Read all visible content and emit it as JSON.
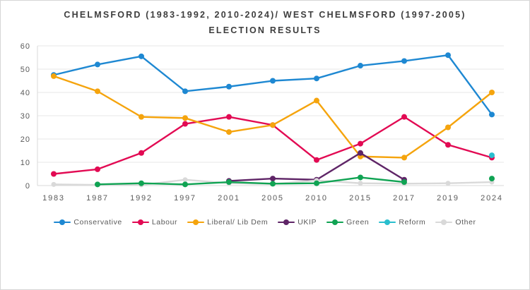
{
  "page": {
    "background_color": "#ffffff",
    "frame_border_color": "#d6d6d6"
  },
  "chart_data": {
    "type": "line",
    "title": "CHELMSFORD (1983-1992, 2010-2024)/ WEST CHELMSFORD (1997-2005) ELECTION RESULTS",
    "categories": [
      "1983",
      "1987",
      "1992",
      "1997",
      "2001",
      "2005",
      "2010",
      "2015",
      "2017",
      "2019",
      "2024"
    ],
    "y_ticks": [
      0,
      10,
      20,
      30,
      40,
      50,
      60
    ],
    "ylim": [
      0,
      60
    ],
    "xlabel": "",
    "ylabel": "",
    "grid": "horizontal",
    "legend_position": "bottom",
    "axis_label_color": "#595959",
    "gridline_color": "#e7e7e7",
    "axis_line_color": "#d9d9d9",
    "series": [
      {
        "name": "Conservative",
        "color": "#1E88D2",
        "values": [
          47.5,
          52,
          55.5,
          40.5,
          42.5,
          45,
          46,
          51.5,
          53.5,
          56,
          30.5
        ]
      },
      {
        "name": "Labour",
        "color": "#E20A53",
        "values": [
          5,
          7,
          14,
          26.5,
          29.5,
          26,
          11,
          18,
          29.5,
          17.5,
          12
        ]
      },
      {
        "name": "Liberal/ Lib Dem",
        "color": "#F5A40D",
        "values": [
          47,
          40.5,
          29.5,
          29,
          23,
          26,
          36.5,
          12.5,
          12,
          25,
          40
        ]
      },
      {
        "name": "UKIP",
        "color": "#5F2567",
        "values": [
          null,
          null,
          null,
          null,
          2,
          3,
          2.5,
          14,
          2.5,
          null,
          null
        ]
      },
      {
        "name": "Green",
        "color": "#10A353",
        "values": [
          null,
          0.5,
          1,
          0.5,
          1.5,
          0.8,
          1,
          3.5,
          1.5,
          null,
          3
        ]
      },
      {
        "name": "Reform",
        "color": "#29BECE",
        "values": [
          null,
          null,
          null,
          null,
          null,
          null,
          null,
          null,
          null,
          null,
          13
        ]
      },
      {
        "name": "Other",
        "color": "#D9D9D9",
        "values": [
          0.5,
          0.3,
          0.3,
          2.5,
          1,
          0.7,
          2.2,
          1,
          0.8,
          1,
          1.5
        ]
      }
    ]
  }
}
